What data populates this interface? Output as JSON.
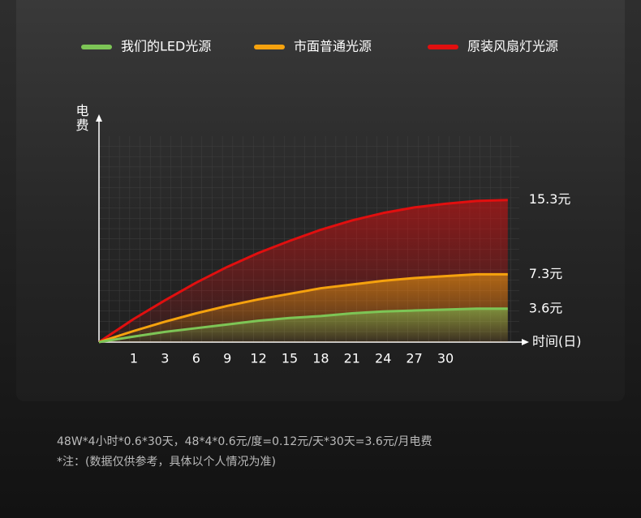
{
  "chart_data": {
    "type": "line",
    "y_label": "电费",
    "x_label": "时间(日)",
    "categories": [
      "1",
      "3",
      "6",
      "9",
      "12",
      "15",
      "18",
      "21",
      "24",
      "27",
      "30",
      null,
      null
    ],
    "ylim": [
      0,
      22
    ],
    "series": [
      {
        "name": "我们的LED光源",
        "color": "#7dc556",
        "values": [
          0.6,
          1.1,
          1.5,
          1.9,
          2.3,
          2.6,
          2.8,
          3.1,
          3.3,
          3.4,
          3.5,
          3.6,
          3.6
        ],
        "value_labels": [
          null,
          null,
          null,
          null,
          null,
          null,
          null,
          null,
          null,
          null,
          null,
          null,
          "3.6元"
        ]
      },
      {
        "name": "市面普通光源",
        "color": "#f5a20e",
        "values": [
          1.2,
          2.2,
          3.1,
          3.9,
          4.6,
          5.2,
          5.8,
          6.2,
          6.6,
          6.9,
          7.1,
          7.3,
          7.3
        ],
        "value_labels": [
          null,
          null,
          null,
          null,
          null,
          null,
          null,
          null,
          null,
          null,
          null,
          null,
          "7.3元"
        ]
      },
      {
        "name": "原装风扇灯光源",
        "color": "#e10f0f",
        "values": [
          2.5,
          4.5,
          6.4,
          8.1,
          9.6,
          10.9,
          12.1,
          13.1,
          13.9,
          14.5,
          14.9,
          15.2,
          15.3
        ],
        "value_labels": [
          null,
          null,
          null,
          null,
          null,
          null,
          null,
          null,
          null,
          null,
          null,
          null,
          "15.3元"
        ]
      }
    ],
    "notes": [
      "48W*4小时*0.6*30天，48*4*0.6元/度=0.12元/天*30天=3.6元/月电费",
      "*注：(数据仅供参考，具体以个人情况为准)"
    ]
  }
}
